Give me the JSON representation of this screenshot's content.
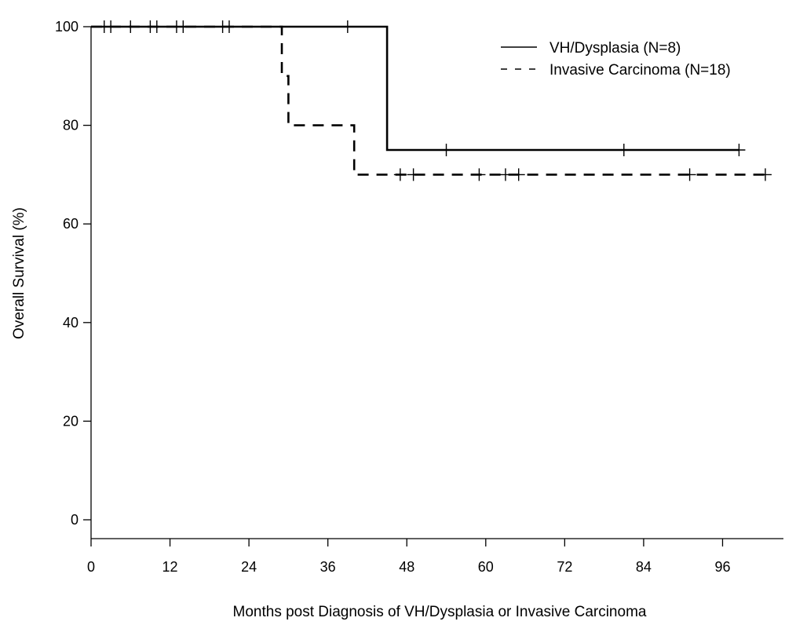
{
  "chart_data": {
    "type": "line",
    "xlabel": "Months post Diagnosis of VH/Dysplasia or Invasive Carcinoma",
    "ylabel": "Overall Survival (%)",
    "xlim": [
      0,
      105
    ],
    "ylim": [
      0,
      100
    ],
    "x_ticks": [
      0,
      12,
      24,
      36,
      48,
      60,
      72,
      84,
      96
    ],
    "y_ticks": [
      0,
      20,
      40,
      60,
      80,
      100
    ],
    "grid": false,
    "legend_position": "top-right",
    "series": [
      {
        "name": "VH/Dysplasia (N=8)",
        "line_style": "solid",
        "steps": [
          [
            0,
            100
          ],
          [
            45,
            75
          ],
          [
            98.5,
            75
          ]
        ],
        "censored": [
          [
            2,
            100
          ],
          [
            3,
            100
          ],
          [
            6,
            100
          ],
          [
            9,
            100
          ],
          [
            10,
            100
          ],
          [
            13,
            100
          ],
          [
            14,
            100
          ],
          [
            20,
            100
          ],
          [
            21,
            100
          ],
          [
            39,
            100
          ],
          [
            54,
            75
          ],
          [
            81,
            75
          ],
          [
            98.5,
            75
          ]
        ]
      },
      {
        "name": "Invasive Carcinoma (N=18)",
        "line_style": "dashed",
        "steps": [
          [
            0,
            100
          ],
          [
            29,
            90
          ],
          [
            30,
            80
          ],
          [
            40,
            70
          ],
          [
            102.5,
            70
          ]
        ],
        "censored": [
          [
            47,
            70
          ],
          [
            49,
            70
          ],
          [
            59,
            70
          ],
          [
            63,
            70
          ],
          [
            65,
            70
          ],
          [
            91,
            70
          ],
          [
            102.5,
            70
          ]
        ]
      }
    ]
  }
}
